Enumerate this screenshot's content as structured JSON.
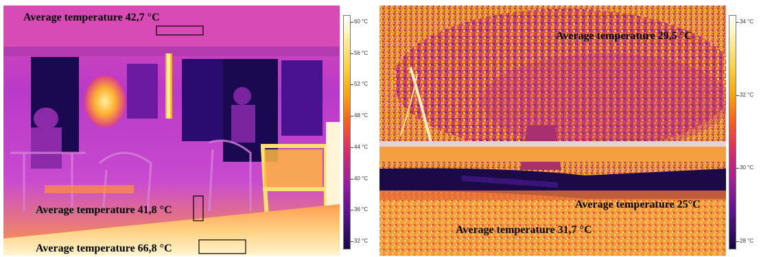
{
  "left_image": {
    "labels": {
      "top": "Average temperature 42,7 °C",
      "middle": "Average temperature 41,8 °C",
      "bottom": "Average temperature 66,8 °C"
    },
    "colorbar_ticks": [
      "60 °C",
      "56 °C",
      "52 °C",
      "48 °C",
      "44 °C",
      "40 °C",
      "36 °C",
      "32 °C"
    ]
  },
  "right_image": {
    "labels": {
      "top": "Average temperature 29,5 °C",
      "right": "Average temperature 25°C",
      "bottom": "Average temperature 31,7 °C"
    },
    "colorbar_ticks": [
      "34 °C",
      "32 °C",
      "30 °C",
      "28 °C"
    ]
  },
  "colors": {
    "palette_hot": "#ffffff",
    "palette_warm": "#ffa300",
    "palette_mid": "#e0286a",
    "palette_cool": "#5a1090",
    "palette_cold": "#140848"
  }
}
